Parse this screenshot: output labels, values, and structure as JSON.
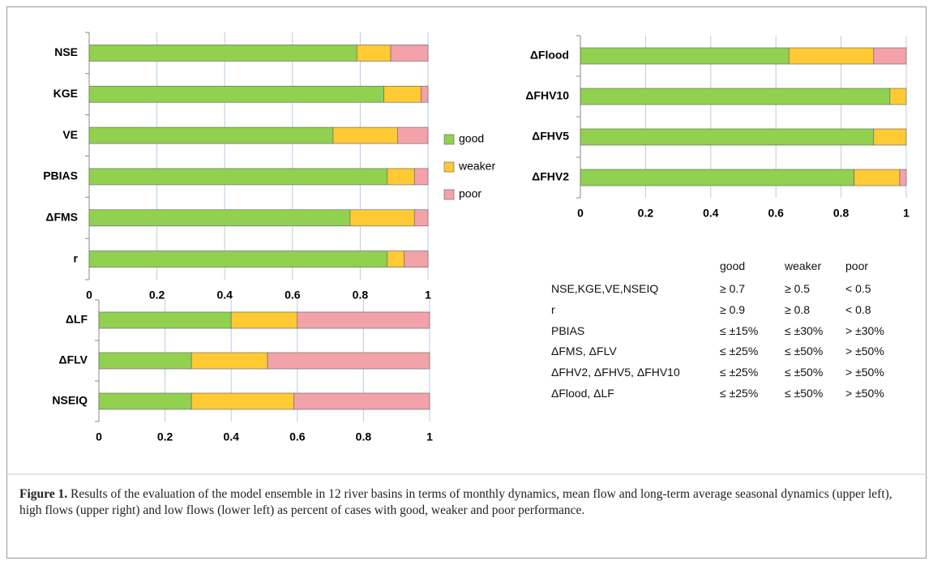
{
  "chart_data": [
    {
      "type": "stacked-bar-h",
      "categories": [
        "NSE",
        "KGE",
        "VE",
        "PBIAS",
        "ΔFMS",
        "r"
      ],
      "series": [
        {
          "name": "good",
          "color": "#92d050",
          "values": [
            0.79,
            0.87,
            0.72,
            0.88,
            0.77,
            0.88
          ]
        },
        {
          "name": "weaker",
          "color": "#ffca33",
          "values": [
            0.1,
            0.11,
            0.19,
            0.08,
            0.19,
            0.05
          ]
        },
        {
          "name": "poor",
          "color": "#f4a2aa",
          "values": [
            0.11,
            0.02,
            0.09,
            0.04,
            0.04,
            0.07
          ]
        }
      ],
      "xlim": [
        0,
        1
      ],
      "xticks": [
        0,
        0.2,
        0.4,
        0.6,
        0.8,
        1
      ],
      "grid": true
    },
    {
      "type": "stacked-bar-h",
      "categories": [
        "ΔFlood",
        "ΔFHV10",
        "ΔFHV5",
        "ΔFHV2"
      ],
      "series": [
        {
          "color": "#92d050",
          "values": [
            0.64,
            0.95,
            0.9,
            0.84
          ]
        },
        {
          "color": "#ffca33",
          "values": [
            0.26,
            0.05,
            0.1,
            0.14
          ]
        },
        {
          "color": "#f4a2aa",
          "values": [
            0.1,
            0,
            0,
            0.02
          ]
        }
      ],
      "xlim": [
        0,
        1
      ],
      "xticks": [
        0,
        0.2,
        0.4,
        0.6,
        0.8,
        1
      ],
      "grid": true
    },
    {
      "type": "stacked-bar-h",
      "categories": [
        "ΔLF",
        "ΔFLV",
        "NSEIQ"
      ],
      "series": [
        {
          "color": "#92d050",
          "values": [
            0.4,
            0.28,
            0.28
          ]
        },
        {
          "color": "#ffca33",
          "values": [
            0.2,
            0.23,
            0.31
          ]
        },
        {
          "color": "#f4a2aa",
          "values": [
            0.4,
            0.49,
            0.41
          ]
        }
      ],
      "xlim": [
        0,
        1
      ],
      "xticks": [
        0,
        0.2,
        0.4,
        0.6,
        0.8,
        1
      ],
      "grid": true
    }
  ],
  "table": {
    "header": [
      "good",
      "weaker",
      "poor"
    ],
    "rows": [
      [
        "NSE,KGE,VE,NSEIQ",
        "≥ 0.7",
        "≥ 0.5",
        "< 0.5"
      ],
      [
        "r",
        "≥ 0.9",
        "≥ 0.8",
        "< 0.8"
      ],
      [
        "PBIAS",
        "≤ ±15%",
        "≤ ±30%",
        "> ±30%"
      ],
      [
        "ΔFMS, ΔFLV",
        "≤ ±25%",
        "≤ ±50%",
        "> ±50%"
      ],
      [
        "ΔFHV2, ΔFHV5, ΔFHV10",
        "≤ ±25%",
        "≤ ±50%",
        "> ±50%"
      ],
      [
        "ΔFlood, ΔLF",
        "≤ ±25%",
        "≤ ±50%",
        "> ±50%"
      ]
    ]
  },
  "caption": {
    "label": "Figure 1.",
    "text": "Results of the evaluation of the model ensemble in 12 river basins in terms of monthly dynamics, mean flow and long-term average seasonal dynamics (upper left), high flows (upper right) and low flows (lower left) as percent of cases with good, weaker and poor performance."
  }
}
